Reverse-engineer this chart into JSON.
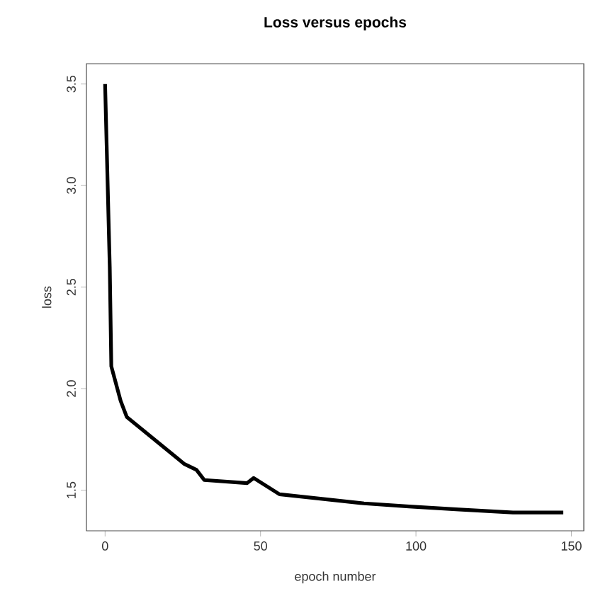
{
  "chart_data": {
    "type": "line",
    "title": "Loss versus epochs",
    "xlabel": "epoch number",
    "ylabel": "loss",
    "x": [
      0,
      0.5,
      1,
      1.5,
      2,
      5,
      7,
      25.4,
      29.4,
      31.9,
      45.7,
      47.8,
      56.1,
      83.3,
      97.8,
      113.8,
      131.2,
      147.4
    ],
    "values": [
      3.5,
      3.2,
      2.9,
      2.6,
      2.11,
      1.94,
      1.86,
      1.63,
      1.6,
      1.55,
      1.535,
      1.56,
      1.48,
      1.435,
      1.42,
      1.405,
      1.39,
      1.39
    ],
    "color": "#000000",
    "xlim": [
      -6,
      154
    ],
    "ylim": [
      1.3,
      3.6
    ],
    "xticks": [
      0,
      50,
      100,
      150
    ],
    "yticks": [
      1.5,
      {
        "value": 2,
        "label": "2.0"
      },
      2.5,
      {
        "value": 3,
        "label": "3.0"
      },
      3.5
    ]
  }
}
